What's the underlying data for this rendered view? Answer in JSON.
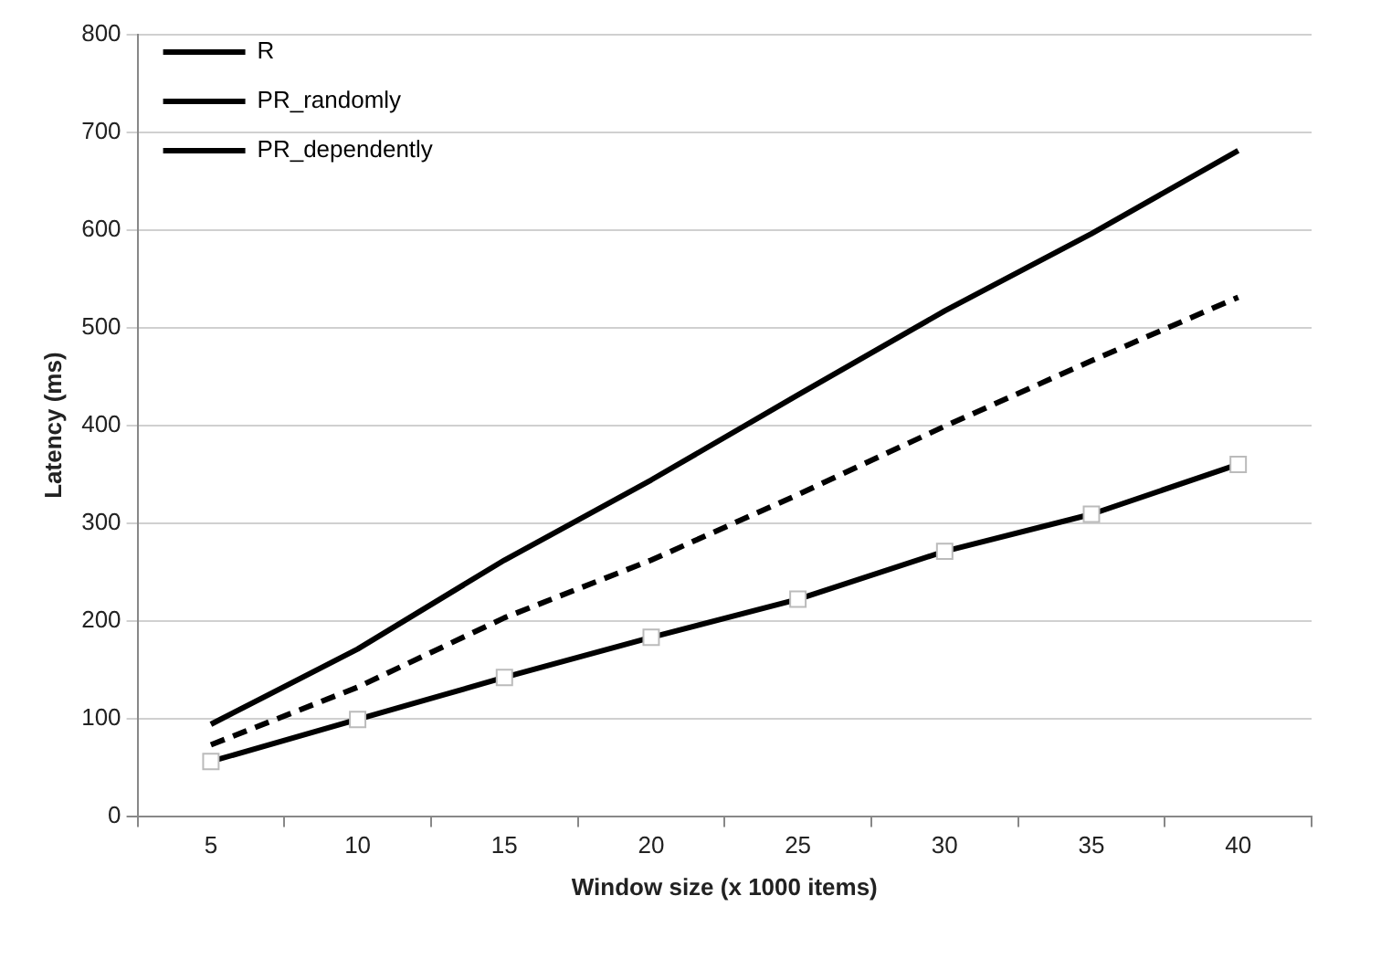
{
  "chart_data": {
    "type": "line",
    "xlabel": "Window size (x 1000 items)",
    "ylabel": "Latency (ms)",
    "categories": [
      "5",
      "10",
      "15",
      "20",
      "25",
      "30",
      "35",
      "40"
    ],
    "series": [
      {
        "name": "R",
        "color": "#000000",
        "values": [
          94,
          171,
          262,
          344,
          431,
          517,
          596,
          681
        ],
        "marker": "none",
        "line_style": "solid"
      },
      {
        "name": "PR_randomly",
        "color": "#000000",
        "values": [
          56,
          99,
          142,
          183,
          222,
          271,
          309,
          360
        ],
        "marker": "square",
        "line_style": "solid"
      },
      {
        "name": "PR_dependently",
        "color": "#000000",
        "values": [
          73,
          132,
          203,
          262,
          329,
          399,
          466,
          531
        ],
        "marker": "none",
        "line_style": "dashed"
      }
    ],
    "ylim": [
      0,
      800
    ],
    "yticks": [
      0,
      100,
      200,
      300,
      400,
      500,
      600,
      700,
      800
    ],
    "grid": "y",
    "legend": "top left"
  }
}
